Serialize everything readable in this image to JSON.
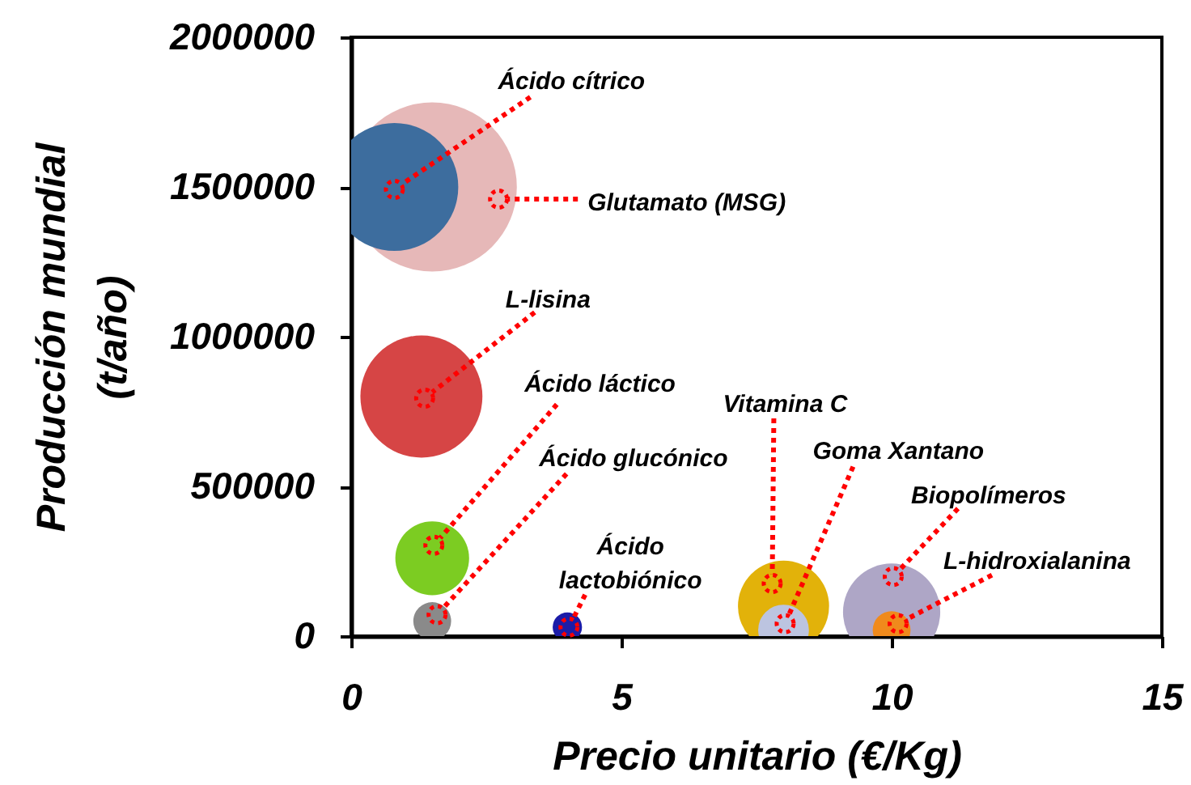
{
  "chart_data": {
    "type": "bubble",
    "xlabel": "Precio unitario (€/Kg)",
    "ylabel": "Producción mundial\n(t/año)",
    "xlim": [
      0,
      15
    ],
    "ylim": [
      0,
      2000000
    ],
    "xticks": [
      0,
      5,
      10,
      15
    ],
    "yticks": [
      0,
      500000,
      1000000,
      1500000,
      2000000
    ],
    "series": [
      {
        "name": "Glutamato (MSG)",
        "color": "#e6b8b8",
        "x": [
          1.5
        ],
        "values": [
          1500000
        ],
        "sizes": [
          1
        ]
      },
      {
        "name": "Ácido cítrico",
        "color": "#3d6d9e",
        "x": [
          0.8
        ],
        "values": [
          1500000
        ],
        "sizes": [
          0.57
        ]
      },
      {
        "name": "L-lisina",
        "color": "#d64545",
        "x": [
          1.3
        ],
        "values": [
          800000
        ],
        "sizes": [
          0.52
        ]
      },
      {
        "name": "Ácido láctico",
        "color": "#7ccc22",
        "x": [
          1.5
        ],
        "values": [
          260000
        ],
        "sizes": [
          0.19
        ]
      },
      {
        "name": "Ácido glucónico",
        "color": "#8a8a8a",
        "x": [
          1.5
        ],
        "values": [
          50000
        ],
        "sizes": [
          0.05
        ]
      },
      {
        "name": "Ácido lactobiónico",
        "color": "#1c1ca8",
        "x": [
          4
        ],
        "values": [
          30000
        ],
        "sizes": [
          0.03
        ]
      },
      {
        "name": "Vitamina C",
        "color": "#e2b20a",
        "x": [
          8
        ],
        "values": [
          100000
        ],
        "sizes": [
          0.29
        ]
      },
      {
        "name": "Goma Xantano",
        "color": "#bcc4e0",
        "x": [
          8
        ],
        "values": [
          20000
        ],
        "sizes": [
          0.09
        ]
      },
      {
        "name": "Biopolímeros",
        "color": "#aea6c6",
        "x": [
          10
        ],
        "values": [
          80000
        ],
        "sizes": [
          0.33
        ]
      },
      {
        "name": "L-hidroxialanina",
        "color": "#f08a1c",
        "x": [
          10
        ],
        "values": [
          20000
        ],
        "sizes": [
          0.05
        ]
      }
    ]
  }
}
